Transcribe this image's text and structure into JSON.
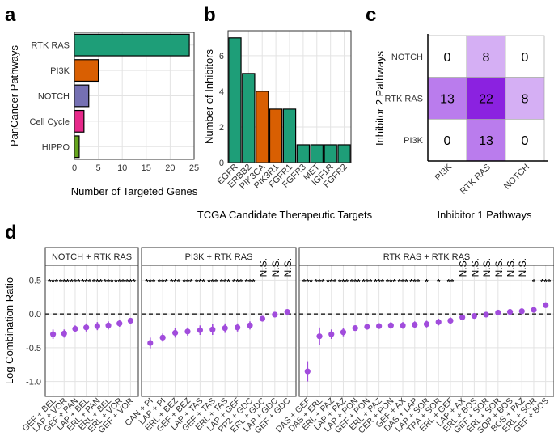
{
  "panel_letters": [
    "a",
    "b",
    "c",
    "d"
  ],
  "chart_data": [
    {
      "panel": "a",
      "type": "bar",
      "orientation": "horizontal",
      "categories": [
        "RTK RAS",
        "PI3K",
        "NOTCH",
        "Cell Cycle",
        "HIPPO"
      ],
      "values": [
        24,
        5,
        3,
        2,
        1
      ],
      "colors": [
        "#1e9e78",
        "#d95f02",
        "#7570b3",
        "#e7298a",
        "#66a61e"
      ],
      "xlabel": "Number of Targeted Genes",
      "ylabel": "PanCancer Pathways",
      "xlim": [
        0,
        25
      ],
      "xticks": [
        0,
        5,
        10,
        15,
        20,
        25
      ],
      "grid": true
    },
    {
      "panel": "b",
      "type": "bar",
      "categories": [
        "EGFR",
        "ERBB2",
        "PIK3CA",
        "PIK3R1",
        "FGFR1",
        "FGFR3",
        "MET",
        "IGF1R",
        "FGFR2"
      ],
      "values": [
        7,
        5,
        4,
        3,
        3,
        1,
        1,
        1,
        1
      ],
      "colors": [
        "#1e9e78",
        "#1e9e78",
        "#d95f02",
        "#d95f02",
        "#1e9e78",
        "#1e9e78",
        "#1e9e78",
        "#1e9e78",
        "#1e9e78"
      ],
      "xlabel": "TCGA Candidate Therapeutic Targets",
      "ylabel": "Number of Inhibitors",
      "ylim": [
        0,
        7.4
      ],
      "yticks": [
        0,
        2,
        4,
        6
      ],
      "grid": true
    },
    {
      "panel": "c",
      "type": "heatmap",
      "x_categories": [
        "PI3K",
        "RTK RAS",
        "NOTCH"
      ],
      "y_categories": [
        "NOTCH",
        "RTK RAS",
        "PI3K"
      ],
      "values": [
        [
          0,
          8,
          0
        ],
        [
          13,
          22,
          8
        ],
        [
          0,
          13,
          0
        ]
      ],
      "xlabel": "Inhibitor 1 Pathways",
      "ylabel": "Inhibitor 2 Pathways",
      "color_low": "#ffffff",
      "color_high": "#8b22e0",
      "value_max": 22
    },
    {
      "panel": "d",
      "type": "scatter",
      "ylabel": "Log Combination Ratio",
      "ylim": [
        -1.22,
        0.72
      ],
      "yticks": [
        -1.0,
        -0.5,
        0.0,
        0.5
      ],
      "point_color": "#a14cdc",
      "reference_line": 0,
      "facets": [
        {
          "title": "NOTCH + RTK RAS",
          "labels": [
            "GEF + BEL",
            "LAP + VOR",
            "GEF + PAN",
            "LAP + BEL",
            "ERL + PAN",
            "ERL + BEL",
            "ERL + VOR",
            "GEF + VOR"
          ],
          "values": [
            -0.3,
            -0.29,
            -0.22,
            -0.2,
            -0.18,
            -0.17,
            -0.14,
            -0.1
          ],
          "err": [
            0.07,
            0.06,
            0.05,
            0.06,
            0.06,
            0.06,
            0.05,
            0.03
          ],
          "sig": [
            "***",
            "***",
            "***",
            "***",
            "***",
            "***",
            "***",
            "***"
          ]
        },
        {
          "title": "PI3K + RTK RAS",
          "labels": [
            "CAN + PI",
            "LAP + PI",
            "ERL + BEZ",
            "GEF + BEZ",
            "LAP + TAS",
            "GEF + TAS",
            "ERL + TAS",
            "LAP + GEF",
            "PP2 + GDC",
            "ERL + GDC",
            "LAP + GDC",
            "GEF + GDC"
          ],
          "values": [
            -0.43,
            -0.35,
            -0.28,
            -0.26,
            -0.24,
            -0.23,
            -0.21,
            -0.2,
            -0.17,
            -0.07,
            -0.01,
            0.03
          ],
          "err": [
            0.08,
            0.06,
            0.07,
            0.06,
            0.07,
            0.08,
            0.07,
            0.06,
            0.06,
            0.04,
            0.04,
            0.03
          ],
          "sig": [
            "***",
            "***",
            "***",
            "***",
            "***",
            "***",
            "***",
            "***",
            "***",
            "N.S.",
            "N.S.",
            "N.S."
          ]
        },
        {
          "title": "RTK RAS + RTK RAS",
          "labels": [
            "DAS + GEF",
            "DAS + ERL",
            "ERL + PAZ",
            "LAP + PAZ",
            "LAP + PON",
            "GEF + PON",
            "ERL + PAZ",
            "CER + PON",
            "GEF + AX",
            "DAS + LAP",
            "LAP + SOR",
            "TRA + SOR",
            "ERL + GEF",
            "LAP + AX",
            "ERL + BOS",
            "GEF + SOR",
            "ERL + SOR",
            "SOR + BOS",
            "BOS + PAZ",
            "ERL + SOR",
            "GEF + BOS"
          ],
          "values": [
            -0.85,
            -0.33,
            -0.3,
            -0.27,
            -0.21,
            -0.19,
            -0.18,
            -0.17,
            -0.17,
            -0.16,
            -0.15,
            -0.12,
            -0.1,
            -0.05,
            -0.03,
            -0.01,
            0.02,
            0.03,
            0.04,
            0.06,
            0.13
          ],
          "err": [
            0.15,
            0.13,
            0.07,
            0.06,
            0.04,
            0.04,
            0.04,
            0.05,
            0.05,
            0.05,
            0.05,
            0.05,
            0.05,
            0.04,
            0.04,
            0.04,
            0.04,
            0.04,
            0.04,
            0.04,
            0.04
          ],
          "sig": [
            "***",
            "***",
            "***",
            "***",
            "***",
            "***",
            "***",
            "***",
            "***",
            "***",
            "*",
            "*",
            "**",
            "N.S.",
            "N.S.",
            "N.S.",
            "N.S.",
            "N.S.",
            "N.S.",
            "*",
            "***"
          ]
        }
      ]
    }
  ]
}
